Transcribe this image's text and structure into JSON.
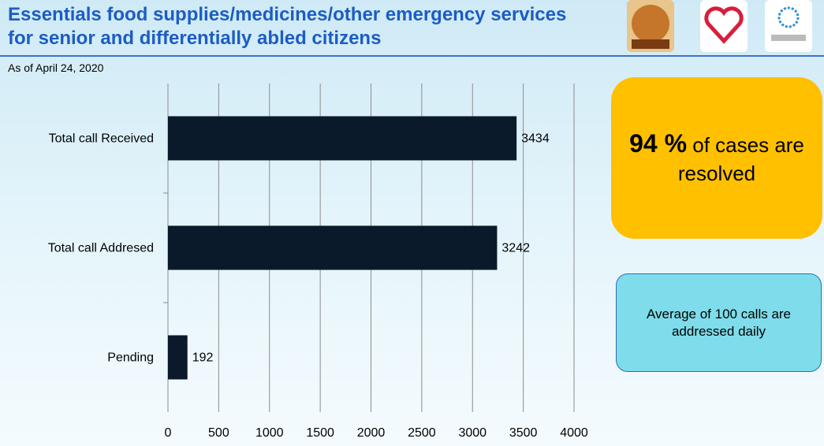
{
  "header": {
    "title": "Essentials food supplies/medicines/other emergency services for senior and differentially abled citizens",
    "subtitle": "As of April 24, 2020"
  },
  "chart_data": {
    "type": "bar",
    "orientation": "horizontal",
    "categories": [
      "Total call Received",
      "Total call Addresed",
      "Pending"
    ],
    "values": [
      3434,
      3242,
      192
    ],
    "color": "#0b1a2a",
    "xlim": [
      0,
      4000
    ],
    "xticks": [
      0,
      500,
      1000,
      1500,
      2000,
      2500,
      3000,
      3500,
      4000
    ],
    "grid": true
  },
  "callouts": [
    {
      "highlight": "94 %",
      "text": "of cases are resolved"
    },
    {
      "text": "Average of 100 calls are addressed daily"
    }
  ]
}
